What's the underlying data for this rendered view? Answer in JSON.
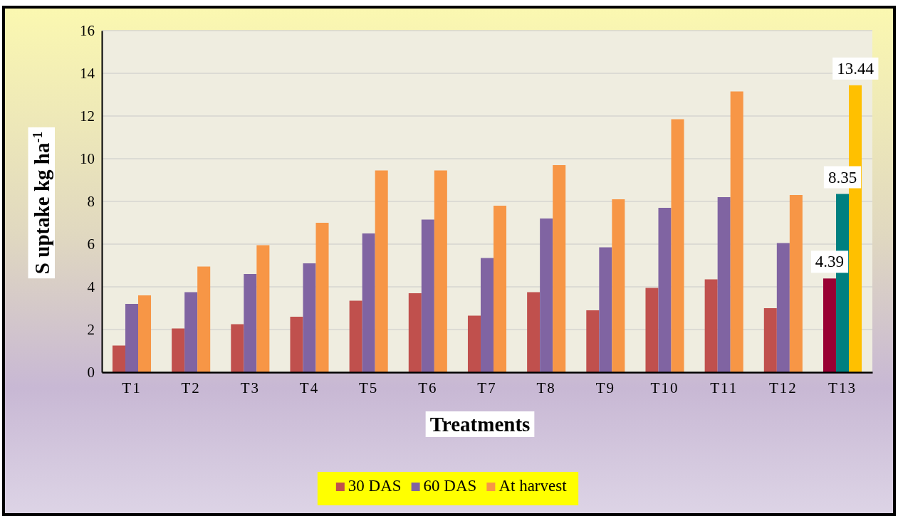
{
  "chart_data": {
    "type": "bar",
    "xlabel": "Treatments",
    "ylabel": "S uptake kg ha$^{-1}$",
    "categories": [
      "T1",
      "T2",
      "T3",
      "T4",
      "T5",
      "T6",
      "T7",
      "T8",
      "T9",
      "T10",
      "T11",
      "T12",
      "T13"
    ],
    "series": [
      {
        "name": "30 DAS",
        "color": "#c0504d",
        "colors": [
          "#c0504d",
          "#c0504d",
          "#c0504d",
          "#c0504d",
          "#c0504d",
          "#c0504d",
          "#c0504d",
          "#c0504d",
          "#c0504d",
          "#c0504d",
          "#c0504d",
          "#c0504d",
          "#990033"
        ],
        "values": [
          1.25,
          2.05,
          2.25,
          2.6,
          3.35,
          3.7,
          2.65,
          3.75,
          2.9,
          3.95,
          4.35,
          3.0,
          4.39
        ],
        "value_labels": [
          null,
          null,
          null,
          null,
          null,
          null,
          null,
          null,
          null,
          null,
          null,
          null,
          "4.39"
        ]
      },
      {
        "name": "60 DAS",
        "color": "#8064a2",
        "colors": [
          "#8064a2",
          "#8064a2",
          "#8064a2",
          "#8064a2",
          "#8064a2",
          "#8064a2",
          "#8064a2",
          "#8064a2",
          "#8064a2",
          "#8064a2",
          "#8064a2",
          "#8064a2",
          "#008080"
        ],
        "values": [
          3.2,
          3.75,
          4.6,
          5.1,
          6.5,
          7.15,
          5.35,
          7.2,
          5.85,
          7.7,
          8.2,
          6.05,
          8.35
        ],
        "value_labels": [
          null,
          null,
          null,
          null,
          null,
          null,
          null,
          null,
          null,
          null,
          null,
          null,
          "8.35"
        ]
      },
      {
        "name": "At harvest",
        "color": "#f79646",
        "colors": [
          "#f79646",
          "#f79646",
          "#f79646",
          "#f79646",
          "#f79646",
          "#f79646",
          "#f79646",
          "#f79646",
          "#f79646",
          "#f79646",
          "#f79646",
          "#f79646",
          "#ffc000"
        ],
        "values": [
          3.6,
          4.95,
          5.95,
          7.0,
          9.45,
          9.45,
          7.8,
          9.7,
          8.1,
          11.85,
          13.15,
          8.3,
          13.44
        ],
        "value_labels": [
          null,
          null,
          null,
          null,
          null,
          null,
          null,
          null,
          null,
          null,
          null,
          null,
          "13.44"
        ]
      }
    ],
    "ylim": [
      0,
      16
    ],
    "yticks": [
      0,
      2,
      4,
      6,
      8,
      10,
      12,
      14,
      16
    ],
    "grid": "y",
    "legend": "bottom"
  }
}
